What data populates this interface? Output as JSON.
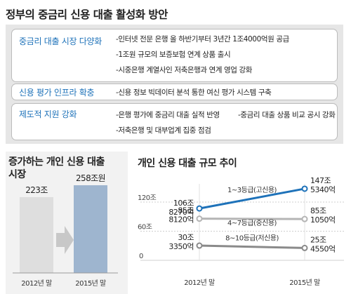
{
  "title": "정부의 중금리 신용 대출 활성화 방안",
  "sections": [
    {
      "category": "중금리 대출 시장 다양화",
      "items": [
        "-인터넷 전문 은행 올 하반기부터 3년간 1조4000억원 공급",
        "-1조원 규모의 보증보험 연계 상품 출시",
        "-시중은행 계열사인 저축은행과 연계 영업 강화"
      ]
    },
    {
      "category": "신용 평가 인프라 확충",
      "items": [
        "-신용 정보 빅데이터 분석 통한 여신 평가 시스템 구축"
      ]
    },
    {
      "category": "제도적 지원 강화",
      "items": [
        "-은행 평가에 중금리 대출 실적 반영",
        "-중금리 대출 상품 비교 공시 강화",
        "-저축은행 및 대부업계 집중 점검"
      ]
    }
  ],
  "chart_data": [
    {
      "type": "bar",
      "title": "증가하는 개인 신용 대출 시장",
      "categories": [
        "2012년 말",
        "2015년 말"
      ],
      "values": [
        223,
        258
      ],
      "value_labels": [
        "223조",
        "258조원"
      ],
      "unit": "조원",
      "colors": [
        "#dedede",
        "#9eb5cf"
      ]
    },
    {
      "type": "line",
      "title": "개인 신용 대출 규모 추이",
      "categories": [
        "2012년 말",
        "2015년 말"
      ],
      "y_ticks": [
        "120조",
        "60조",
        "0"
      ],
      "ylim": [
        0,
        160
      ],
      "series": [
        {
          "name": "1~3등급(고신용)",
          "values": [
            106.827,
            147.534
          ],
          "start_label": [
            "106조",
            "8270억"
          ],
          "end_label": [
            "147조",
            "5340억"
          ],
          "color": "#1e72b9"
        },
        {
          "name": "4~7등급(중신용)",
          "values": [
            85.812,
            85.105
          ],
          "start_label": [
            "85조",
            "8120억"
          ],
          "end_label": [
            "85조",
            "1050억"
          ],
          "color": "#b5b5b5"
        },
        {
          "name": "8~10등급(저신용)",
          "values": [
            30.335,
            25.455
          ],
          "start_label": [
            "30조",
            "3350억"
          ],
          "end_label": [
            "25조",
            "4550억"
          ],
          "color": "#8a8a8a"
        }
      ]
    }
  ]
}
